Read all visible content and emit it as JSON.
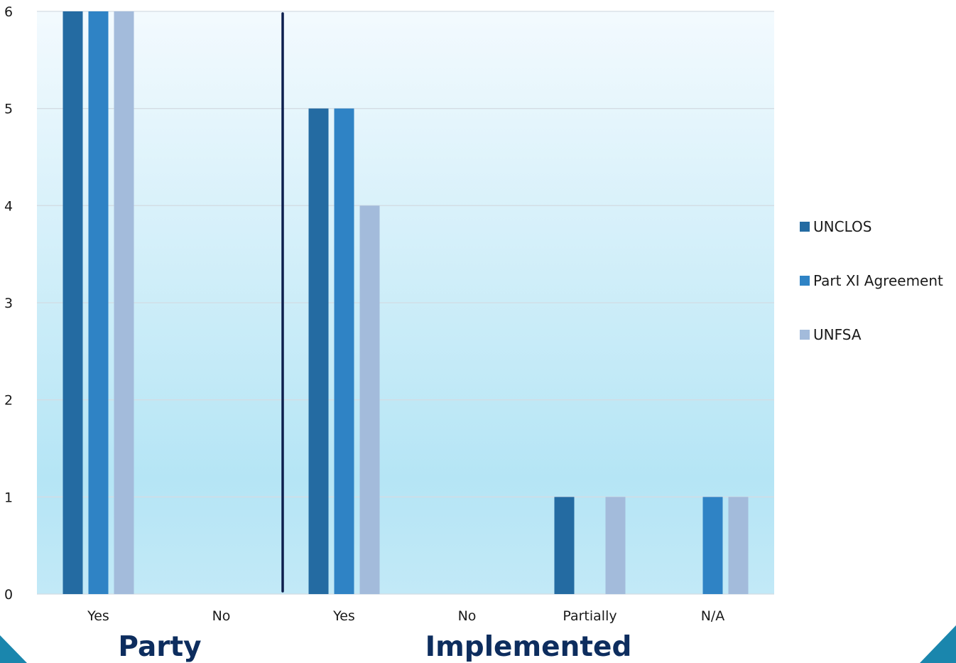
{
  "chart_data": {
    "type": "bar",
    "categories": [
      "Yes",
      "No",
      "Yes",
      "No",
      "Partially",
      "N/A"
    ],
    "groups": [
      {
        "label": "Party",
        "categories": [
          "Yes",
          "No"
        ]
      },
      {
        "label": "Implemented",
        "categories": [
          "Yes",
          "No",
          "Partially",
          "N/A"
        ]
      }
    ],
    "series": [
      {
        "name": "UNCLOS",
        "color": "#246BA2",
        "values": [
          6,
          0,
          5,
          0,
          1,
          0
        ]
      },
      {
        "name": "Part XI Agreement",
        "color": "#2F83C5",
        "values": [
          6,
          0,
          5,
          0,
          0,
          1
        ]
      },
      {
        "name": "UNFSA",
        "color": "#A3BBDB",
        "values": [
          6,
          0,
          4,
          0,
          1,
          1
        ]
      }
    ],
    "ylim": [
      0,
      6
    ],
    "yticks": [
      "0",
      "1",
      "2",
      "3",
      "4",
      "5",
      "6"
    ],
    "grid": true,
    "legend_position": "right",
    "background_gradient": [
      "#F3FAFE",
      "#B5E5F5"
    ],
    "separator_color": "#0D1F4E",
    "corner_color": "#1A86AD"
  }
}
